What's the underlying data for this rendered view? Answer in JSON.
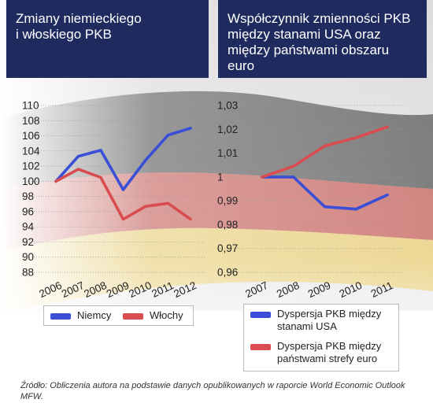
{
  "left_panel": {
    "title": "Zmiany niemieckiego\ni włoskiego PKB",
    "legend": [
      {
        "label": "Niemcy",
        "color": "#3b4fd6"
      },
      {
        "label": "Włochy",
        "color": "#d94d50"
      }
    ]
  },
  "right_panel": {
    "title": "Współczynnik zmienności PKB\nmiędzy stanami USA oraz\nmiędzy państwami obszaru\neuro",
    "legend": [
      {
        "label": "Dyspersja PKB między\nstanami USA",
        "color": "#3b4fd6"
      },
      {
        "label": "Dyspersja PKB między\npaństwami strefy euro",
        "color": "#d94d50"
      }
    ]
  },
  "source": "Źródło: Obliczenia autora na podstawie danych opublikowanych w raporcie World Economic Outlook MFW.",
  "chart_data": [
    {
      "type": "line",
      "title": "Zmiany niemieckiego i włoskiego PKB",
      "categories": [
        "2006",
        "2007",
        "2008",
        "2009",
        "2010",
        "2011",
        "2012"
      ],
      "y_ticks": [
        "110",
        "108",
        "106",
        "104",
        "102",
        "100",
        "98",
        "96",
        "94",
        "92",
        "90",
        "88"
      ],
      "ylim": [
        88,
        110
      ],
      "series": [
        {
          "name": "Niemcy",
          "color": "#3b4fd6",
          "values": [
            100,
            103.3,
            104.1,
            98.9,
            102.8,
            106.1,
            107.0
          ]
        },
        {
          "name": "Włochy",
          "color": "#d94d50",
          "values": [
            100,
            101.6,
            100.5,
            95.0,
            96.7,
            97.1,
            95.0
          ]
        }
      ],
      "grid": true,
      "legend_position": "bottom"
    },
    {
      "type": "line",
      "title": "Współczynnik zmienności PKB między stanami USA oraz między państwami obszaru euro",
      "categories": [
        "2007",
        "2008",
        "2009",
        "2010",
        "2011"
      ],
      "y_ticks": [
        "1,03",
        "1,02",
        "1,01",
        "1",
        "0,99",
        "0,98",
        "0,97",
        "0,96"
      ],
      "ylim": [
        0.96,
        1.03
      ],
      "series": [
        {
          "name": "Dyspersja PKB między stanami USA",
          "color": "#3b4fd6",
          "values": [
            1.0,
            1.0,
            0.9875,
            0.9865,
            0.9925
          ]
        },
        {
          "name": "Dyspersja PKB między państwami strefy euro",
          "color": "#d94d50",
          "values": [
            1.0,
            1.0045,
            1.013,
            1.0165,
            1.021
          ]
        }
      ],
      "grid": true,
      "legend_position": "bottom"
    }
  ]
}
